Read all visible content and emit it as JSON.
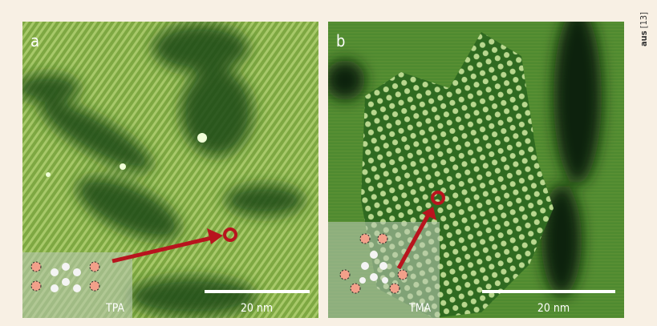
{
  "credit": {
    "prefix": "aus",
    "ref": "[13]"
  },
  "panels": [
    {
      "label": "a",
      "inset_label": "TPA",
      "scale_bar": "20 nm"
    },
    {
      "label": "b",
      "inset_label": "TMA",
      "scale_bar": "20 nm"
    }
  ]
}
